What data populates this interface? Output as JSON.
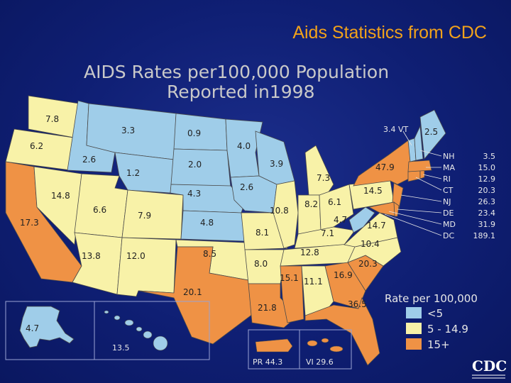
{
  "slide_title": "Aids Statistics from CDC",
  "map_title_line1": "AIDS Rates per100,000 Population",
  "map_title_line2": "Reported in1998",
  "colors": {
    "low": "#9fcde9",
    "mid": "#f8f2a8",
    "high": "#ef9245",
    "background": "#0f1f74",
    "title": "#f2a21a"
  },
  "legend": {
    "title": "Rate per 100,000",
    "items": [
      {
        "label": "<5",
        "color": "#9fcde9"
      },
      {
        "label": "5 - 14.9",
        "color": "#f8f2a8"
      },
      {
        "label": "15+",
        "color": "#ef9245"
      }
    ]
  },
  "states": [
    {
      "id": "WA",
      "rate": "7.8"
    },
    {
      "id": "OR",
      "rate": "6.2"
    },
    {
      "id": "CA",
      "rate": "17.3"
    },
    {
      "id": "ID",
      "rate": "2.6"
    },
    {
      "id": "NV",
      "rate": "14.8"
    },
    {
      "id": "UT",
      "rate": "6.6"
    },
    {
      "id": "AZ",
      "rate": "13.8"
    },
    {
      "id": "MT",
      "rate": "3.3"
    },
    {
      "id": "WY",
      "rate": "1.2"
    },
    {
      "id": "CO",
      "rate": "7.9"
    },
    {
      "id": "NM",
      "rate": "12.0"
    },
    {
      "id": "ND",
      "rate": "0.9"
    },
    {
      "id": "SD",
      "rate": "2.0"
    },
    {
      "id": "NE",
      "rate": "4.3"
    },
    {
      "id": "KS",
      "rate": "4.8"
    },
    {
      "id": "OK",
      "rate": "8.5"
    },
    {
      "id": "TX",
      "rate": "20.1"
    },
    {
      "id": "MN",
      "rate": "4.0"
    },
    {
      "id": "IA",
      "rate": "2.6"
    },
    {
      "id": "MO",
      "rate": "10.8"
    },
    {
      "id": "AR",
      "rate": "8.0"
    },
    {
      "id": "LA",
      "rate": "21.8"
    },
    {
      "id": "WI",
      "rate": "3.9"
    },
    {
      "id": "IL",
      "rate": "8.1"
    },
    {
      "id": "MI",
      "rate": "7.3"
    },
    {
      "id": "IN",
      "rate": "8.2"
    },
    {
      "id": "OH",
      "rate": "6.1"
    },
    {
      "id": "KY",
      "rate": "7.1"
    },
    {
      "id": "TN",
      "rate": "12.8"
    },
    {
      "id": "MS",
      "rate": "15.1"
    },
    {
      "id": "AL",
      "rate": "11.1"
    },
    {
      "id": "GA",
      "rate": "16.9"
    },
    {
      "id": "FL",
      "rate": "36.5"
    },
    {
      "id": "SC",
      "rate": "20.3"
    },
    {
      "id": "NC",
      "rate": "10.4"
    },
    {
      "id": "VA",
      "rate": "14.7"
    },
    {
      "id": "WV",
      "rate": "4.7"
    },
    {
      "id": "PA",
      "rate": "14.5"
    },
    {
      "id": "NY",
      "rate": "47.9"
    },
    {
      "id": "ME",
      "rate": "2.5"
    },
    {
      "id": "AK",
      "rate": "4.7"
    },
    {
      "id": "HI",
      "rate": "13.5"
    }
  ],
  "vt_label": "3.4 VT",
  "northeast": [
    {
      "abbr": "NH",
      "rate": "3.5"
    },
    {
      "abbr": "MA",
      "rate": "15.0"
    },
    {
      "abbr": "RI",
      "rate": "12.9"
    },
    {
      "abbr": "CT",
      "rate": "20.3"
    },
    {
      "abbr": "NJ",
      "rate": "26.3"
    },
    {
      "abbr": "DE",
      "rate": "23.4"
    },
    {
      "abbr": "MD",
      "rate": "31.9"
    },
    {
      "abbr": "DC",
      "rate": "189.1"
    }
  ],
  "territories": [
    {
      "label": "PR 44.3"
    },
    {
      "label": "VI 29.6"
    }
  ],
  "logo_text": "CDC"
}
